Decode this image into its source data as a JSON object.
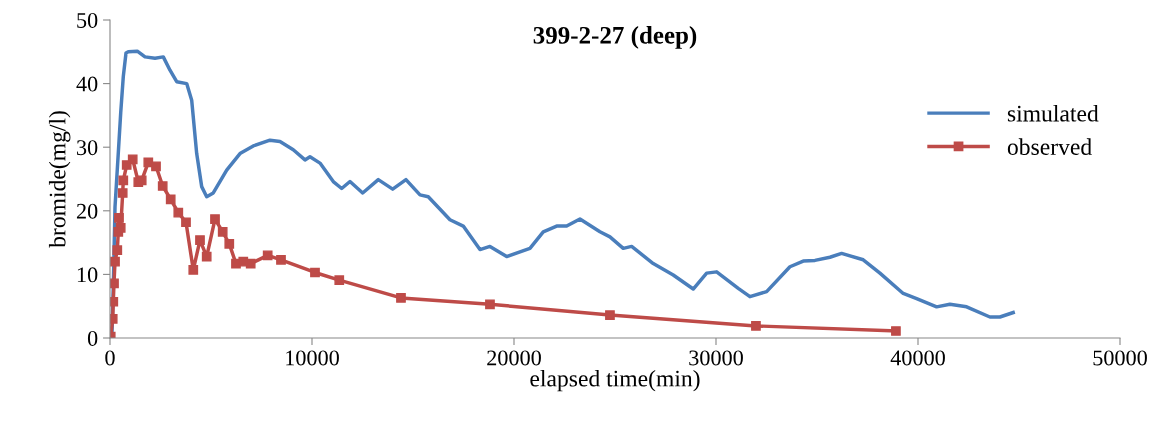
{
  "chart_data": {
    "type": "line",
    "title": "399-2-27 (deep)",
    "xlabel": "elapsed time(min)",
    "ylabel": "bromide(mg/l)",
    "xlim": [
      0,
      50000
    ],
    "xticks": [
      0,
      10000,
      20000,
      30000,
      40000,
      50000
    ],
    "ylim": [
      0,
      50
    ],
    "yticks": [
      0,
      10,
      20,
      30,
      40,
      50
    ],
    "grid": false,
    "legend": "top right",
    "series": [
      {
        "name": "simulated",
        "color": "#4a7ebb",
        "marker": "none",
        "x": [
          100,
          163,
          248,
          411,
          530,
          658,
          792,
          906,
          1351,
          1733,
          2228,
          2638,
          2970,
          3302,
          3797,
          4044,
          4292,
          4539,
          4787,
          5113,
          5777,
          6435,
          7093,
          7920,
          8415,
          9073,
          9653,
          9900,
          10395,
          11053,
          11469,
          11880,
          12509,
          13281,
          13994,
          14652,
          15345,
          15756,
          16830,
          17488,
          18315,
          18810,
          19637,
          20790,
          21448,
          22112,
          22607,
          23265,
          24255,
          24750,
          25408,
          25824,
          26893,
          27883,
          28873,
          29537,
          30032,
          31101,
          31680,
          32507,
          33660,
          34319,
          34898,
          35640,
          36219,
          37288,
          38115,
          39268,
          39932,
          40922,
          41580,
          42407,
          43560,
          44055,
          44713
        ],
        "values": [
          1,
          8,
          20.6,
          29.1,
          35.4,
          41.1,
          44.8,
          45.0,
          45.1,
          44.2,
          44.0,
          44.2,
          42.1,
          40.3,
          40.0,
          37.4,
          29.0,
          23.8,
          22.2,
          22.8,
          26.4,
          29.0,
          30.2,
          31.1,
          30.9,
          29.6,
          28.0,
          28.5,
          27.5,
          24.6,
          23.5,
          24.6,
          22.8,
          24.9,
          23.4,
          24.9,
          22.5,
          22.2,
          18.6,
          17.6,
          13.9,
          14.4,
          12.8,
          14.1,
          16.7,
          17.6,
          17.6,
          18.7,
          16.7,
          15.9,
          14.1,
          14.4,
          11.7,
          9.9,
          7.7,
          10.2,
          10.4,
          7.8,
          6.5,
          7.3,
          11.2,
          12.1,
          12.2,
          12.7,
          13.3,
          12.3,
          10.2,
          7.0,
          6.2,
          4.9,
          5.3,
          4.9,
          3.3,
          3.3,
          4.0
        ]
      },
      {
        "name": "observed",
        "color": "#be4b48",
        "marker": "square",
        "x": [
          35,
          134,
          163,
          198,
          248,
          361,
          411,
          446,
          530,
          629,
          658,
          827,
          1124,
          1401,
          1569,
          1896,
          2277,
          2609,
          3005,
          3381,
          3762,
          4123,
          4455,
          4787,
          5198,
          5579,
          5905,
          6237,
          6598,
          6965,
          7806,
          8465,
          10148,
          11350,
          14405,
          18810,
          24750,
          31977,
          38907
        ],
        "values": [
          0.2,
          3.0,
          5.7,
          8.6,
          12.0,
          13.8,
          16.7,
          18.9,
          17.3,
          22.8,
          24.8,
          27.2,
          28.1,
          24.5,
          24.8,
          27.6,
          27.0,
          23.9,
          21.8,
          19.7,
          18.2,
          10.7,
          15.4,
          12.8,
          18.7,
          16.7,
          14.8,
          11.7,
          12.0,
          11.7,
          13.0,
          12.3,
          10.3,
          9.1,
          6.3,
          5.3,
          3.6,
          1.9,
          1.1
        ]
      }
    ]
  }
}
